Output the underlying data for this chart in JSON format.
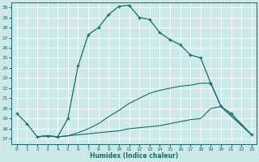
{
  "xlabel": "Humidex (Indice chaleur)",
  "xlim": [
    -0.5,
    23.5
  ],
  "ylim": [
    16.5,
    30.5
  ],
  "xticks": [
    0,
    1,
    2,
    3,
    4,
    5,
    6,
    7,
    8,
    9,
    10,
    11,
    12,
    13,
    14,
    15,
    16,
    17,
    18,
    19,
    20,
    21,
    22,
    23
  ],
  "yticks": [
    17,
    18,
    19,
    20,
    21,
    22,
    23,
    24,
    25,
    26,
    27,
    28,
    29,
    30
  ],
  "bg_color": "#cce8e8",
  "line_color": "#1a6b6b",
  "grid_color": "#ffffff",
  "curve1_x": [
    0,
    1,
    2,
    3,
    4,
    5,
    6,
    7,
    8,
    9,
    10,
    11,
    12,
    13,
    14,
    15,
    16,
    17,
    18,
    19
  ],
  "curve1_y": [
    19.5,
    18.5,
    17.2,
    17.3,
    17.2,
    19.0,
    24.2,
    27.3,
    28.0,
    29.3,
    30.1,
    30.2,
    29.0,
    28.8,
    27.5,
    26.8,
    26.3,
    25.3,
    25.0,
    22.5
  ],
  "curve2_x": [
    2,
    3,
    4,
    5,
    6,
    7,
    8,
    9,
    10,
    11,
    12,
    13,
    14,
    15,
    16,
    17,
    18,
    19,
    20,
    23
  ],
  "curve2_y": [
    17.2,
    17.3,
    17.2,
    17.3,
    17.4,
    17.5,
    17.6,
    17.7,
    17.8,
    18.0,
    18.1,
    18.2,
    18.3,
    18.5,
    18.7,
    18.9,
    19.0,
    20.0,
    20.2,
    17.4
  ],
  "curve3_x": [
    2,
    3,
    4,
    5,
    6,
    7,
    8,
    9,
    10,
    11,
    12,
    13,
    14,
    15,
    16,
    17,
    18,
    19,
    20,
    23
  ],
  "curve3_y": [
    17.2,
    17.3,
    17.2,
    17.3,
    17.6,
    18.0,
    18.5,
    19.2,
    19.8,
    20.5,
    21.0,
    21.5,
    21.8,
    22.0,
    22.2,
    22.3,
    22.5,
    22.5,
    20.2,
    17.4
  ],
  "curve4_x": [
    19,
    20,
    21,
    23
  ],
  "curve4_y": [
    22.5,
    20.2,
    19.5,
    17.4
  ]
}
